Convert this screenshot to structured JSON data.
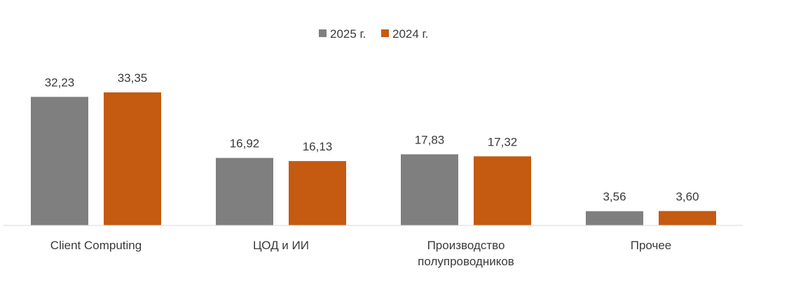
{
  "chart_data": {
    "type": "bar",
    "categories": [
      [
        "Client Computing"
      ],
      [
        "ЦОД и ИИ"
      ],
      [
        "Производство",
        "полупроводников"
      ],
      [
        "Прочее"
      ]
    ],
    "series": [
      {
        "name": "2025 г.",
        "color": "#7f7f7f",
        "values": [
          32.23,
          16.92,
          17.83,
          3.56
        ],
        "labels": [
          "32,23",
          "16,92",
          "17,83",
          "3,56"
        ]
      },
      {
        "name": "2024 г.",
        "color": "#c55a11",
        "values": [
          33.35,
          16.13,
          17.32,
          3.6
        ],
        "labels": [
          "33,35",
          "16,13",
          "17,32",
          "3,60"
        ]
      }
    ],
    "ylim": [
      0,
      33.35
    ],
    "grid": false,
    "legend_position": "top-center"
  }
}
